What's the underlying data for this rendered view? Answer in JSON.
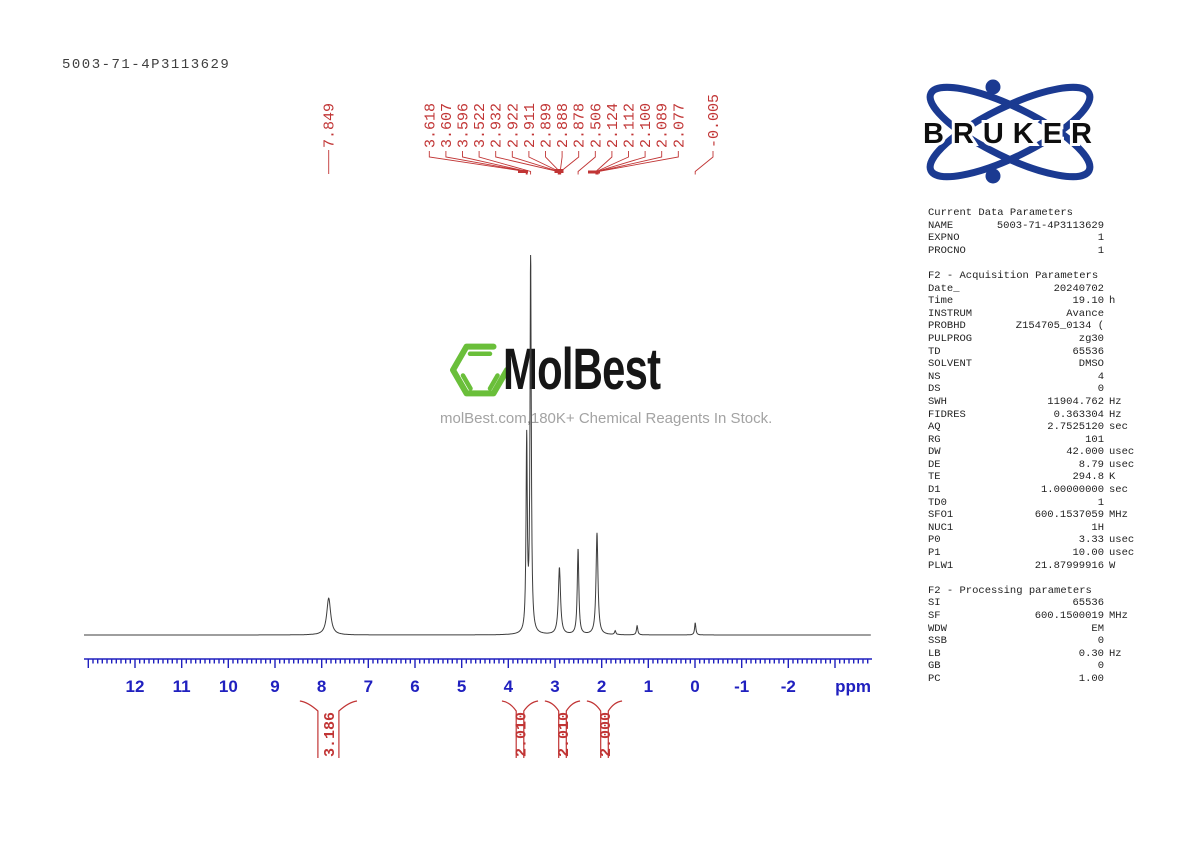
{
  "page": {
    "title": "5003-71-4P3113629"
  },
  "logo": {
    "brand": "BRUKER",
    "color": "#1b3a91"
  },
  "watermark": {
    "name": "MolBest",
    "tagline": "molBest.com,180K+ Chemical Reagents In Stock.",
    "hexagon_color": "#6abf3a"
  },
  "colors": {
    "peaks_red": "#c13535",
    "axis_blue": "#2020bf",
    "spectrum_line": "#3d3d3d"
  },
  "chart_data": {
    "type": "line",
    "title": "1H NMR spectrum",
    "xlabel": "ppm",
    "x_range": [
      13.1,
      -3.8
    ],
    "x_inverted": true,
    "x_ticks": [
      12,
      11,
      10,
      9,
      8,
      7,
      6,
      5,
      4,
      3,
      2,
      1,
      0,
      -1,
      -2
    ],
    "peak_labels": [
      {
        "text": "7.849",
        "ppm": 7.849
      },
      {
        "text": "3.618",
        "ppm": 3.618
      },
      {
        "text": "3.607",
        "ppm": 3.607
      },
      {
        "text": "3.596",
        "ppm": 3.596
      },
      {
        "text": "3.522",
        "ppm": 3.522
      },
      {
        "text": "2.932",
        "ppm": 2.932
      },
      {
        "text": "2.922",
        "ppm": 2.922
      },
      {
        "text": "2.911",
        "ppm": 2.911
      },
      {
        "text": "2.899",
        "ppm": 2.899
      },
      {
        "text": "2.888",
        "ppm": 2.888
      },
      {
        "text": "2.878",
        "ppm": 2.878
      },
      {
        "text": "2.506",
        "ppm": 2.506
      },
      {
        "text": "2.124",
        "ppm": 2.124
      },
      {
        "text": "2.112",
        "ppm": 2.112
      },
      {
        "text": "2.100",
        "ppm": 2.1
      },
      {
        "text": "2.089",
        "ppm": 2.089
      },
      {
        "text": "2.077",
        "ppm": 2.077
      },
      {
        "text": "-0.005",
        "ppm": -0.005
      }
    ],
    "peaks": [
      {
        "ppm": 7.849,
        "rel_height": 0.097,
        "width_ppm": 0.051
      },
      {
        "ppm": 3.607,
        "rel_height": 0.505,
        "width_ppm": 0.016
      },
      {
        "ppm": 3.522,
        "rel_height": 1.0,
        "width_ppm": 0.016
      },
      {
        "ppm": 2.905,
        "rel_height": 0.176,
        "width_ppm": 0.028
      },
      {
        "ppm": 2.506,
        "rel_height": 0.224,
        "width_ppm": 0.02
      },
      {
        "ppm": 2.1,
        "rel_height": 0.268,
        "width_ppm": 0.0246
      },
      {
        "ppm": 1.71,
        "rel_height": 0.01,
        "width_ppm": 0.017
      },
      {
        "ppm": 1.24,
        "rel_height": 0.024,
        "width_ppm": 0.017
      },
      {
        "ppm": -0.005,
        "rel_height": 0.032,
        "width_ppm": 0.016
      }
    ],
    "integrals": [
      {
        "value": "3.186",
        "ppm_from": 8.36,
        "ppm_to": 7.35
      },
      {
        "value": "2.010",
        "ppm_from": 4.03,
        "ppm_to": 3.47
      },
      {
        "value": "2.010",
        "ppm_from": 3.11,
        "ppm_to": 2.57
      },
      {
        "value": "2.000",
        "ppm_from": 2.21,
        "ppm_to": 1.67
      }
    ]
  },
  "parameters": {
    "sections": [
      {
        "title": "Current Data Parameters",
        "rows": [
          {
            "n": "NAME",
            "v": "5003-71-4P3113629",
            "u": ""
          },
          {
            "n": "EXPNO",
            "v": "1",
            "u": ""
          },
          {
            "n": "PROCNO",
            "v": "1",
            "u": ""
          }
        ]
      },
      {
        "title": "F2 - Acquisition Parameters",
        "rows": [
          {
            "n": "Date_",
            "v": "20240702",
            "u": ""
          },
          {
            "n": "Time",
            "v": "19.10",
            "u": "h"
          },
          {
            "n": "INSTRUM",
            "v": "Avance",
            "u": ""
          },
          {
            "n": "PROBHD",
            "v": "Z154705_0134 (",
            "u": ""
          },
          {
            "n": "PULPROG",
            "v": "zg30",
            "u": ""
          },
          {
            "n": "TD",
            "v": "65536",
            "u": ""
          },
          {
            "n": "SOLVENT",
            "v": "DMSO",
            "u": ""
          },
          {
            "n": "NS",
            "v": "4",
            "u": ""
          },
          {
            "n": "DS",
            "v": "0",
            "u": ""
          },
          {
            "n": "SWH",
            "v": "11904.762",
            "u": "Hz"
          },
          {
            "n": "FIDRES",
            "v": "0.363304",
            "u": "Hz"
          },
          {
            "n": "AQ",
            "v": "2.7525120",
            "u": "sec"
          },
          {
            "n": "RG",
            "v": "101",
            "u": ""
          },
          {
            "n": "DW",
            "v": "42.000",
            "u": "usec"
          },
          {
            "n": "DE",
            "v": "8.79",
            "u": "usec"
          },
          {
            "n": "TE",
            "v": "294.8",
            "u": "K"
          },
          {
            "n": "D1",
            "v": "1.00000000",
            "u": "sec"
          },
          {
            "n": "TD0",
            "v": "1",
            "u": ""
          },
          {
            "n": "SFO1",
            "v": "600.1537059",
            "u": "MHz"
          },
          {
            "n": "NUC1",
            "v": "1H",
            "u": ""
          },
          {
            "n": "P0",
            "v": "3.33",
            "u": "usec"
          },
          {
            "n": "P1",
            "v": "10.00",
            "u": "usec"
          },
          {
            "n": "PLW1",
            "v": "21.87999916",
            "u": "W"
          }
        ]
      },
      {
        "title": "F2 - Processing parameters",
        "rows": [
          {
            "n": "SI",
            "v": "65536",
            "u": ""
          },
          {
            "n": "SF",
            "v": "600.1500019",
            "u": "MHz"
          },
          {
            "n": "WDW",
            "v": "EM",
            "u": ""
          },
          {
            "n": "SSB",
            "v": "0",
            "u": ""
          },
          {
            "n": "LB",
            "v": "0.30",
            "u": "Hz"
          },
          {
            "n": "GB",
            "v": "0",
            "u": ""
          },
          {
            "n": "PC",
            "v": "1.00",
            "u": ""
          }
        ]
      }
    ]
  }
}
